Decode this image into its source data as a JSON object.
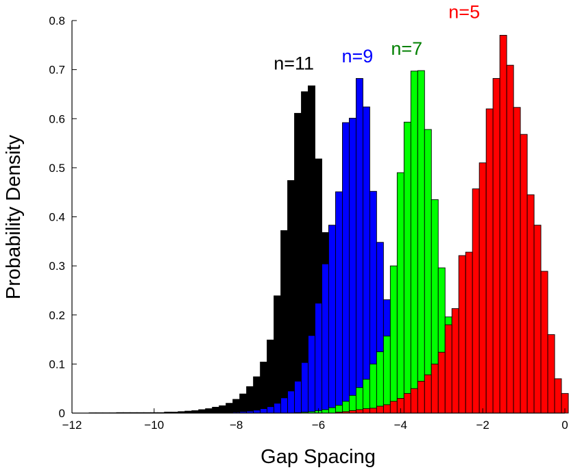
{
  "chart_data": {
    "type": "bar",
    "xlabel": "Gap Spacing",
    "ylabel": "Probability Density",
    "xlim": [
      -12,
      0
    ],
    "ylim": [
      0,
      0.8
    ],
    "xticks": [
      -12,
      -10,
      -8,
      -6,
      -4,
      -2,
      0
    ],
    "yticks": [
      0,
      0.1,
      0.2,
      0.3,
      0.4,
      0.5,
      0.6,
      0.7,
      0.8
    ],
    "bin_width": 0.1667,
    "grid": false,
    "legend": "none",
    "series": [
      {
        "name": "n=11",
        "color": "#000000",
        "label_pos": [
          -6.6,
          0.7
        ],
        "x": [
          -11.5,
          -11.333,
          -11.167,
          -11,
          -10.833,
          -10.667,
          -10.5,
          -10.333,
          -10.167,
          -10,
          -9.833,
          -9.667,
          -9.5,
          -9.333,
          -9.167,
          -9,
          -8.833,
          -8.667,
          -8.5,
          -8.333,
          -8.167,
          -8,
          -7.833,
          -7.667,
          -7.5,
          -7.333,
          -7.167,
          -7,
          -6.833,
          -6.667,
          -6.5,
          -6.333,
          -6.167,
          -6,
          -5.833,
          -5.667,
          -5.5,
          -5.333,
          -5.167,
          -5,
          -4.833,
          -4.667,
          -4.5,
          -4.333,
          -4.167,
          -4
        ],
        "values": [
          0.0005,
          0.0005,
          0.0005,
          0.0005,
          0.001,
          0.001,
          0.001,
          0.001,
          0.001,
          0.001,
          0.001,
          0.002,
          0.002,
          0.003,
          0.004,
          0.005,
          0.007,
          0.009,
          0.012,
          0.015,
          0.02,
          0.028,
          0.039,
          0.054,
          0.074,
          0.104,
          0.149,
          0.239,
          0.372,
          0.474,
          0.611,
          0.655,
          0.667,
          0.518,
          0.368,
          0.236,
          0.136,
          0.077,
          0.039,
          0.019,
          0.01,
          0.005,
          0.002,
          0.001,
          0.0005,
          0.0002
        ]
      },
      {
        "name": "n=9",
        "color": "#0000ff",
        "label_pos": [
          -5.05,
          0.715
        ],
        "x": [
          -8.5,
          -8.333,
          -8.167,
          -8,
          -7.833,
          -7.667,
          -7.5,
          -7.333,
          -7.167,
          -7,
          -6.833,
          -6.667,
          -6.5,
          -6.333,
          -6.167,
          -6,
          -5.833,
          -5.667,
          -5.5,
          -5.333,
          -5.167,
          -5,
          -4.833,
          -4.667,
          -4.5,
          -4.333,
          -4.167,
          -4,
          -3.833,
          -3.667,
          -3.5,
          -3.333,
          -3.167,
          -3,
          -2.833,
          -2.667
        ],
        "values": [
          0.0005,
          0.001,
          0.001,
          0.002,
          0.003,
          0.004,
          0.006,
          0.009,
          0.013,
          0.02,
          0.031,
          0.045,
          0.065,
          0.103,
          0.158,
          0.224,
          0.304,
          0.383,
          0.451,
          0.592,
          0.601,
          0.682,
          0.624,
          0.452,
          0.348,
          0.231,
          0.167,
          0.107,
          0.063,
          0.035,
          0.018,
          0.008,
          0.004,
          0.002,
          0.001,
          0.0005
        ]
      },
      {
        "name": "n=7",
        "color": "#00ff00",
        "label_pos": [
          -3.85,
          0.73
        ],
        "label_color": "#008000",
        "x": [
          -6.5,
          -6.333,
          -6.167,
          -6,
          -5.833,
          -5.667,
          -5.5,
          -5.333,
          -5.167,
          -5,
          -4.833,
          -4.667,
          -4.5,
          -4.333,
          -4.167,
          -4,
          -3.833,
          -3.667,
          -3.5,
          -3.333,
          -3.167,
          -3,
          -2.833,
          -2.667,
          -2.5,
          -2.333,
          -2.167,
          -2,
          -1.833,
          -1.667
        ],
        "values": [
          0.001,
          0.002,
          0.003,
          0.005,
          0.007,
          0.011,
          0.016,
          0.024,
          0.036,
          0.052,
          0.069,
          0.1,
          0.125,
          0.157,
          0.3,
          0.49,
          0.593,
          0.697,
          0.698,
          0.578,
          0.435,
          0.296,
          0.196,
          0.131,
          0.069,
          0.04,
          0.023,
          0.01,
          0.006,
          0.003
        ]
      },
      {
        "name": "n=5",
        "color": "#ff0000",
        "label_pos": [
          -2.45,
          0.805
        ],
        "x": [
          -5.5,
          -5.333,
          -5.167,
          -5,
          -4.833,
          -4.667,
          -4.5,
          -4.333,
          -4.167,
          -4,
          -3.833,
          -3.667,
          -3.5,
          -3.333,
          -3.167,
          -3,
          -2.833,
          -2.667,
          -2.5,
          -2.333,
          -2.167,
          -2,
          -1.833,
          -1.667,
          -1.5,
          -1.333,
          -1.167,
          -1,
          -0.833,
          -0.667,
          -0.5,
          -0.333,
          -0.167,
          0
        ],
        "values": [
          0.002,
          0.003,
          0.005,
          0.007,
          0.009,
          0.01,
          0.014,
          0.017,
          0.024,
          0.03,
          0.04,
          0.05,
          0.065,
          0.078,
          0.1,
          0.124,
          0.18,
          0.213,
          0.321,
          0.328,
          0.457,
          0.51,
          0.62,
          0.682,
          0.77,
          0.709,
          0.623,
          0.568,
          0.445,
          0.383,
          0.289,
          0.16,
          0.07,
          0.04
        ]
      }
    ]
  }
}
